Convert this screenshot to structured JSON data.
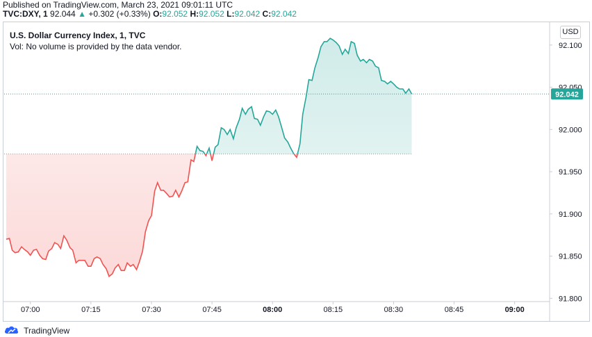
{
  "header": {
    "published": "Published on TradingView.com, March 23, 2021 09:01:11 UTC",
    "symbol": "TVC:DXY, 1",
    "last": "92.044",
    "change": "+0.302 (+0.33%)",
    "open_label": "O:",
    "open_val": "92.052",
    "high_label": "H:",
    "high_val": "92.052",
    "low_label": "L:",
    "low_val": "92.042",
    "close_label": "C:",
    "close_val": "92.042",
    "up_arrow": "▲"
  },
  "legend": {
    "title": "U.S. Dollar Currency Index, 1, TVC",
    "volume_note": "Vol: No volume is provided by the data vendor."
  },
  "currency_button": "USD",
  "footer": {
    "brand": "TradingView"
  },
  "colors": {
    "up": "#26a69a",
    "down": "#ef5350",
    "grid": "#e0e3eb"
  },
  "chart_data": {
    "type": "line",
    "baseline": 91.971,
    "current_price_label": "92.042",
    "ylim": [
      91.797,
      92.127
    ],
    "y_ticks": [
      "92.100",
      "92.050",
      "92.000",
      "91.950",
      "91.900",
      "91.850",
      "91.800"
    ],
    "x_ticks": [
      {
        "label": "07:00",
        "minute": 420,
        "bold": false
      },
      {
        "label": "07:15",
        "minute": 435,
        "bold": false
      },
      {
        "label": "07:30",
        "minute": 450,
        "bold": false
      },
      {
        "label": "07:45",
        "minute": 465,
        "bold": false
      },
      {
        "label": "08:00",
        "minute": 480,
        "bold": true
      },
      {
        "label": "08:15",
        "minute": 495,
        "bold": false
      },
      {
        "label": "08:30",
        "minute": 510,
        "bold": false
      },
      {
        "label": "08:45",
        "minute": 525,
        "bold": false
      },
      {
        "label": "09:00",
        "minute": 540,
        "bold": true
      }
    ],
    "xlim": [
      413.5,
      548.5
    ],
    "series": [
      {
        "points": [
          [
            414.0,
            91.87
          ],
          [
            414.8,
            91.871
          ],
          [
            415.5,
            91.857
          ],
          [
            416.2,
            91.854
          ],
          [
            417.0,
            91.855
          ],
          [
            417.8,
            91.861
          ],
          [
            418.5,
            91.858
          ],
          [
            419.3,
            91.855
          ],
          [
            420.0,
            91.851
          ],
          [
            420.8,
            91.857
          ],
          [
            421.5,
            91.858
          ],
          [
            422.3,
            91.851
          ],
          [
            423.0,
            91.847
          ],
          [
            423.8,
            91.846
          ],
          [
            424.5,
            91.856
          ],
          [
            425.3,
            91.859
          ],
          [
            426.0,
            91.866
          ],
          [
            426.8,
            91.864
          ],
          [
            427.5,
            91.859
          ],
          [
            428.3,
            91.874
          ],
          [
            429.0,
            91.869
          ],
          [
            429.8,
            91.86
          ],
          [
            430.5,
            91.857
          ],
          [
            431.3,
            91.842
          ],
          [
            432.0,
            91.845
          ],
          [
            432.8,
            91.845
          ],
          [
            433.5,
            91.845
          ],
          [
            434.3,
            91.838
          ],
          [
            435.0,
            91.838
          ],
          [
            435.8,
            91.847
          ],
          [
            436.5,
            91.849
          ],
          [
            437.3,
            91.847
          ],
          [
            438.0,
            91.84
          ],
          [
            438.8,
            91.835
          ],
          [
            439.5,
            91.826
          ],
          [
            440.3,
            91.829
          ],
          [
            441.0,
            91.836
          ],
          [
            441.8,
            91.84
          ],
          [
            442.5,
            91.833
          ],
          [
            443.3,
            91.833
          ],
          [
            444.0,
            91.842
          ],
          [
            444.8,
            91.838
          ],
          [
            445.5,
            91.84
          ],
          [
            446.3,
            91.834
          ],
          [
            447.0,
            91.843
          ],
          [
            447.8,
            91.856
          ],
          [
            448.5,
            91.879
          ],
          [
            449.3,
            91.892
          ],
          [
            450.0,
            91.898
          ],
          [
            450.8,
            91.927
          ],
          [
            451.5,
            91.937
          ],
          [
            452.3,
            91.928
          ],
          [
            453.0,
            91.928
          ],
          [
            453.8,
            91.924
          ],
          [
            454.5,
            91.92
          ],
          [
            455.3,
            91.921
          ],
          [
            456.0,
            91.928
          ],
          [
            456.8,
            91.92
          ],
          [
            457.5,
            91.927
          ],
          [
            458.3,
            91.937
          ],
          [
            459.0,
            91.938
          ],
          [
            459.8,
            91.964
          ],
          [
            460.5,
            91.962
          ],
          [
            461.3,
            91.98
          ],
          [
            462.0,
            91.975
          ],
          [
            462.8,
            91.974
          ],
          [
            463.5,
            91.969
          ],
          [
            464.3,
            91.978
          ],
          [
            465.0,
            91.963
          ],
          [
            465.8,
            91.979
          ],
          [
            466.5,
            91.982
          ],
          [
            467.3,
            92.002
          ],
          [
            468.0,
            92.0
          ],
          [
            468.8,
            91.994
          ],
          [
            469.5,
            92.0
          ],
          [
            470.3,
            91.989
          ],
          [
            471.0,
            92.002
          ],
          [
            471.8,
            92.012
          ],
          [
            472.5,
            92.025
          ],
          [
            473.3,
            92.018
          ],
          [
            474.0,
            92.024
          ],
          [
            474.8,
            92.027
          ],
          [
            475.5,
            92.013
          ],
          [
            476.3,
            92.012
          ],
          [
            477.0,
            92.005
          ],
          [
            477.8,
            92.015
          ],
          [
            478.5,
            92.022
          ],
          [
            479.3,
            92.021
          ],
          [
            480.0,
            92.018
          ],
          [
            480.8,
            92.023
          ],
          [
            481.5,
            92.015
          ],
          [
            482.3,
            92.002
          ],
          [
            483.0,
            91.99
          ],
          [
            483.8,
            91.985
          ],
          [
            484.5,
            91.978
          ],
          [
            485.3,
            91.971
          ],
          [
            486.0,
            91.967
          ],
          [
            486.8,
            91.983
          ],
          [
            487.5,
            92.018
          ],
          [
            488.3,
            92.038
          ],
          [
            489.0,
            92.059
          ],
          [
            489.8,
            92.058
          ],
          [
            490.5,
            92.073
          ],
          [
            491.3,
            92.085
          ],
          [
            492.0,
            92.098
          ],
          [
            492.8,
            92.104
          ],
          [
            493.5,
            92.104
          ],
          [
            494.3,
            92.108
          ],
          [
            495.0,
            92.106
          ],
          [
            495.8,
            92.103
          ],
          [
            496.5,
            92.099
          ],
          [
            497.3,
            92.089
          ],
          [
            498.0,
            92.095
          ],
          [
            498.8,
            92.09
          ],
          [
            499.5,
            92.104
          ],
          [
            500.3,
            92.102
          ],
          [
            501.0,
            92.088
          ],
          [
            501.8,
            92.081
          ],
          [
            502.5,
            92.083
          ],
          [
            503.3,
            92.079
          ],
          [
            504.0,
            92.083
          ],
          [
            504.8,
            92.081
          ],
          [
            505.5,
            92.075
          ],
          [
            506.3,
            92.073
          ],
          [
            507.0,
            92.058
          ],
          [
            507.8,
            92.057
          ],
          [
            508.5,
            92.054
          ],
          [
            509.3,
            92.057
          ],
          [
            510.0,
            92.054
          ],
          [
            510.8,
            92.05
          ],
          [
            511.5,
            92.048
          ],
          [
            512.3,
            92.048
          ],
          [
            513.0,
            92.043
          ],
          [
            513.8,
            92.048
          ],
          [
            514.5,
            92.042
          ]
        ]
      }
    ]
  }
}
